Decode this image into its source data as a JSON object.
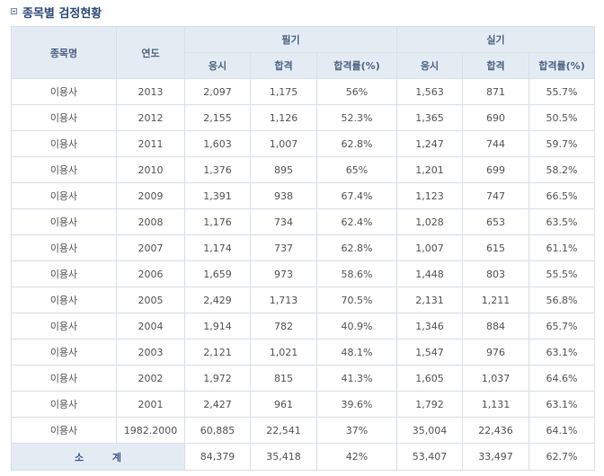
{
  "title": "종목별 검정현황",
  "headers": {
    "col_name": "종목명",
    "col_year": "연도",
    "group_written": "필기",
    "group_practical": "실기",
    "sub": [
      "응시",
      "합격",
      "합격률(%)",
      "응시",
      "합격",
      "합격률(%)"
    ]
  },
  "rows": [
    [
      "이용사",
      "2013",
      "2,097",
      "1,175",
      "56%",
      "1,563",
      "871",
      "55.7%"
    ],
    [
      "이용사",
      "2012",
      "2,155",
      "1,126",
      "52.3%",
      "1,365",
      "690",
      "50.5%"
    ],
    [
      "이용사",
      "2011",
      "1,603",
      "1,007",
      "62.8%",
      "1,247",
      "744",
      "59.7%"
    ],
    [
      "이용사",
      "2010",
      "1,376",
      "895",
      "65%",
      "1,201",
      "699",
      "58.2%"
    ],
    [
      "이용사",
      "2009",
      "1,391",
      "938",
      "67.4%",
      "1,123",
      "747",
      "66.5%"
    ],
    [
      "이용사",
      "2008",
      "1,176",
      "734",
      "62.4%",
      "1,028",
      "653",
      "63.5%"
    ],
    [
      "이용사",
      "2007",
      "1,174",
      "737",
      "62.8%",
      "1,007",
      "615",
      "61.1%"
    ],
    [
      "이용사",
      "2006",
      "1,659",
      "973",
      "58.6%",
      "1,448",
      "803",
      "55.5%"
    ],
    [
      "이용사",
      "2005",
      "2,429",
      "1,713",
      "70.5%",
      "2,131",
      "1,211",
      "56.8%"
    ],
    [
      "이용사",
      "2004",
      "1,914",
      "782",
      "40.9%",
      "1,346",
      "884",
      "65.7%"
    ],
    [
      "이용사",
      "2003",
      "2,121",
      "1,021",
      "48.1%",
      "1,547",
      "976",
      "63.1%"
    ],
    [
      "이용사",
      "2002",
      "1,972",
      "815",
      "41.3%",
      "1,605",
      "1,037",
      "64.6%"
    ],
    [
      "이용사",
      "2001",
      "2,427",
      "961",
      "39.6%",
      "1,792",
      "1,131",
      "63.1%"
    ],
    [
      "이용사",
      "1982.2000",
      "60,885",
      "22,541",
      "37%",
      "35,004",
      "22,436",
      "64.1%"
    ]
  ],
  "total": {
    "label": "소 계",
    "values": [
      "84,379",
      "35,418",
      "42%",
      "53,407",
      "33,497",
      "62.7%"
    ]
  }
}
